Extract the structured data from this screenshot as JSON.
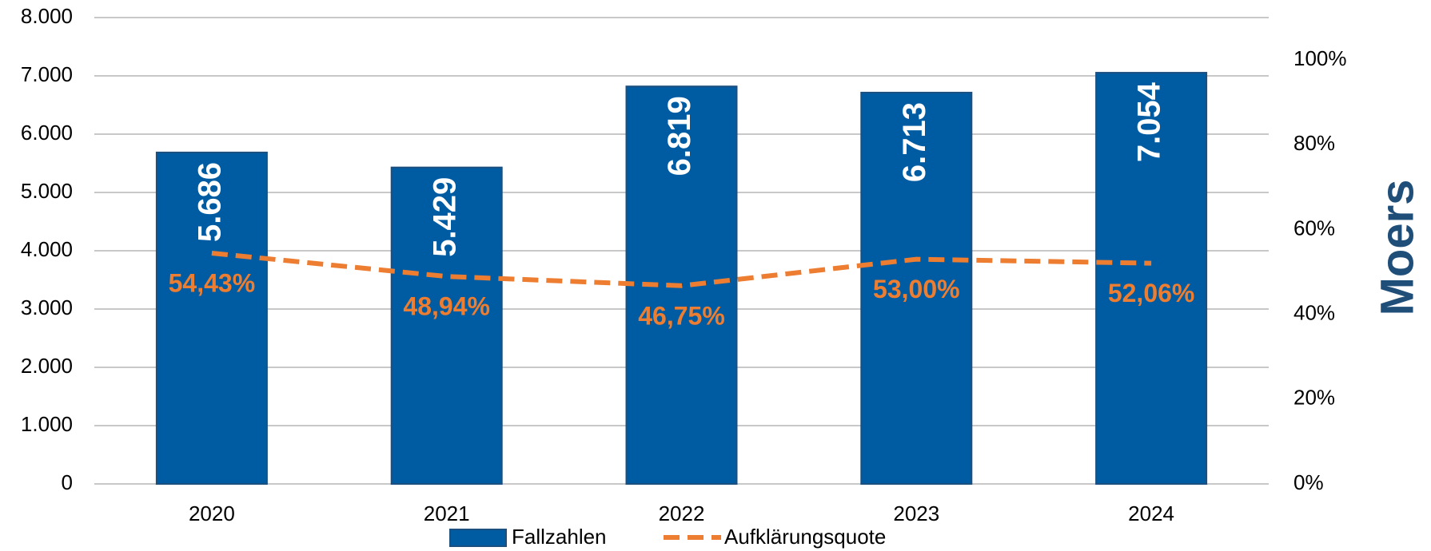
{
  "chart_data": {
    "type": "bar",
    "title": "Moers",
    "categories": [
      "2020",
      "2021",
      "2022",
      "2023",
      "2024"
    ],
    "series": [
      {
        "name": "Fallzahlen",
        "color": "#005ca2",
        "values": [
          5686,
          5429,
          6819,
          6713,
          7054
        ],
        "value_labels": [
          "5.686",
          "5.429",
          "6.819",
          "6.713",
          "7.054"
        ]
      },
      {
        "name": "Aufklärungsquote",
        "type": "line",
        "axis": "y2",
        "color": "#ed7d31",
        "values": [
          54.43,
          48.94,
          46.75,
          53.0,
          52.06
        ],
        "value_labels": [
          "54,43%",
          "48,94%",
          "46,75%",
          "53,00%",
          "52,06%"
        ]
      }
    ],
    "ylim": [
      0,
      8000
    ],
    "yticks": [
      0,
      {
        "value": 1000,
        "label": "1.000"
      },
      {
        "value": 2000,
        "label": "2.000"
      },
      {
        "value": 3000,
        "label": "3.000"
      },
      {
        "value": 4000,
        "label": "4.000"
      },
      {
        "value": 5000,
        "label": "5.000"
      },
      {
        "value": 6000,
        "label": "6.000"
      },
      {
        "value": 7000,
        "label": "7.000"
      },
      {
        "value": 8000,
        "label": "8.000"
      }
    ],
    "y2lim": [
      0,
      110
    ],
    "y2ticks": [
      {
        "value": 0,
        "label": "0%"
      },
      {
        "value": 20,
        "label": "20%"
      },
      {
        "value": 40,
        "label": "40%"
      },
      {
        "value": 60,
        "label": "60%"
      },
      {
        "value": 80,
        "label": "80%"
      },
      {
        "value": 100,
        "label": "100%"
      }
    ],
    "grid": true,
    "legend": "bottom"
  }
}
